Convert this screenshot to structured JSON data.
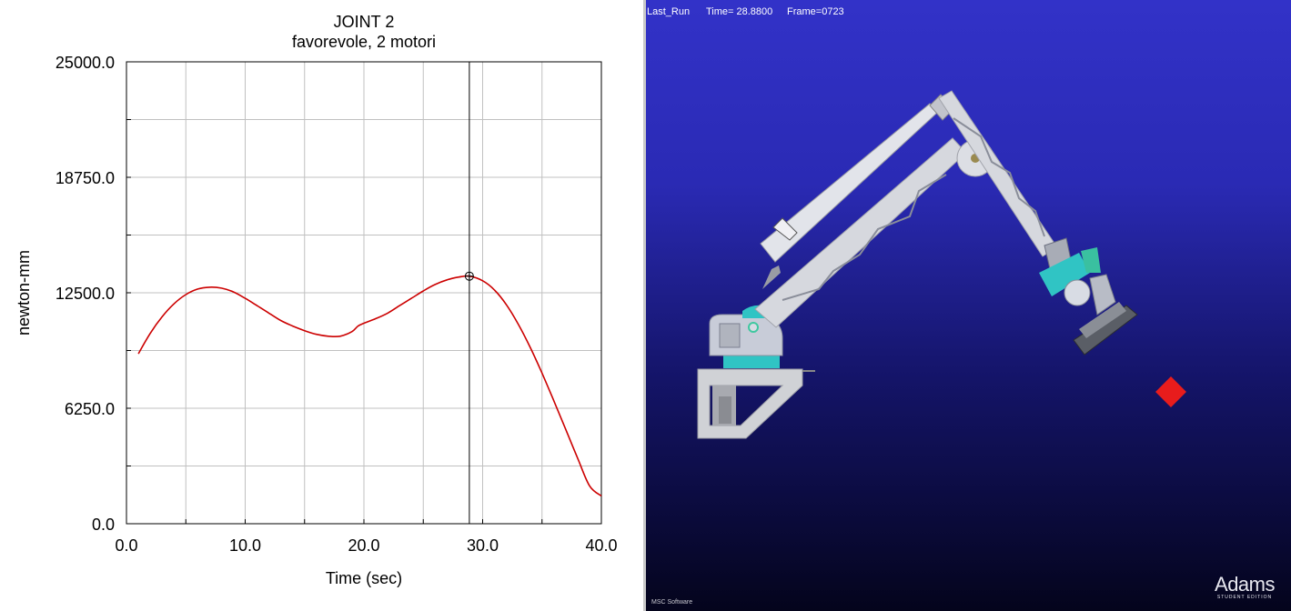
{
  "chart": {
    "title": "JOINT 2",
    "subtitle": "favorevole, 2 motori"
  },
  "chart_data": {
    "type": "line",
    "title": "JOINT 2",
    "subtitle": "favorevole, 2 motori",
    "xlabel": "Time (sec)",
    "ylabel": "newton-mm",
    "xlim": [
      0,
      40
    ],
    "ylim": [
      0,
      25000
    ],
    "x_ticks": [
      "0.0",
      "10.0",
      "20.0",
      "30.0",
      "40.0"
    ],
    "y_ticks": [
      "0.0",
      "6250.0",
      "12500.0",
      "18750.0",
      "25000.0"
    ],
    "grid": true,
    "cursor_x": 28.88,
    "line_color": "#cc0000",
    "series": [
      {
        "x": [
          1,
          2,
          3,
          4,
          5,
          6,
          7,
          8,
          9,
          10,
          11,
          12,
          13,
          14,
          15,
          16,
          17,
          18,
          19,
          19.5,
          20,
          21,
          22,
          23,
          24,
          25,
          26,
          27,
          28,
          28.88,
          30,
          31,
          32,
          33,
          34,
          35,
          36,
          37,
          38,
          39,
          40
        ],
        "y": [
          9200,
          10300,
          11200,
          11900,
          12400,
          12700,
          12800,
          12750,
          12550,
          12200,
          11800,
          11400,
          11000,
          10700,
          10450,
          10250,
          10150,
          10150,
          10400,
          10700,
          10850,
          11100,
          11400,
          11800,
          12200,
          12600,
          12950,
          13200,
          13350,
          13400,
          13150,
          12650,
          11850,
          10800,
          9550,
          8150,
          6650,
          5100,
          3550,
          2050,
          1500
        ]
      }
    ]
  },
  "viewport": {
    "run_name": "Last_Run",
    "time_readout": "Time= 28.8800",
    "frame_readout": "Frame=0723",
    "brand": "Adams",
    "edition": "STUDENT EDITION",
    "vendor": "MSC Software",
    "colors": {
      "gradient_top": "#3232c8",
      "gradient_bottom": "#04041c",
      "target": "#e81c1c",
      "gear": "#2ec8c8"
    }
  }
}
